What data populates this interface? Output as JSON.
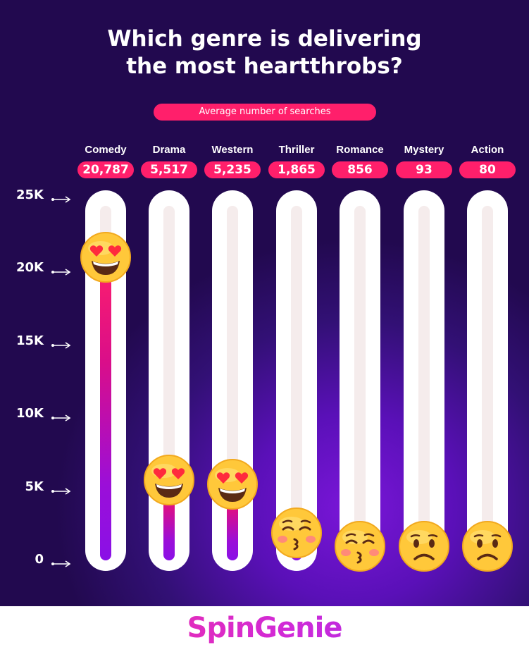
{
  "title_lines": [
    "Which genre is delivering",
    "the most heartthrobs?"
  ],
  "subtitle": "Average number of searches",
  "logo_text": "SpinGenie",
  "colors": {
    "accent": "#ff1f6b",
    "background": "#2a0c5e",
    "fill_bottom": "#8a10e6"
  },
  "chart_data": {
    "type": "bar",
    "orientation": "vertical",
    "categories": [
      "Comedy",
      "Drama",
      "Western",
      "Thriller",
      "Romance",
      "Mystery",
      "Action"
    ],
    "values": [
      20787,
      5517,
      5235,
      1865,
      856,
      93,
      80
    ],
    "value_labels": [
      "20,787",
      "5,517",
      "5,235",
      "1,865",
      "856",
      "93",
      "80"
    ],
    "y_ticks": [
      {
        "value": 25000,
        "label": "25K"
      },
      {
        "value": 20000,
        "label": "20K"
      },
      {
        "value": 15000,
        "label": "15K"
      },
      {
        "value": 10000,
        "label": "10K"
      },
      {
        "value": 5000,
        "label": "5K"
      },
      {
        "value": 0,
        "label": "0"
      }
    ],
    "ylim": [
      0,
      25000
    ],
    "markers": [
      "heart-eyes",
      "heart-eyes",
      "heart-eyes",
      "kissing",
      "kissing",
      "frowning",
      "frowning"
    ],
    "grid": false,
    "legend": "none"
  }
}
